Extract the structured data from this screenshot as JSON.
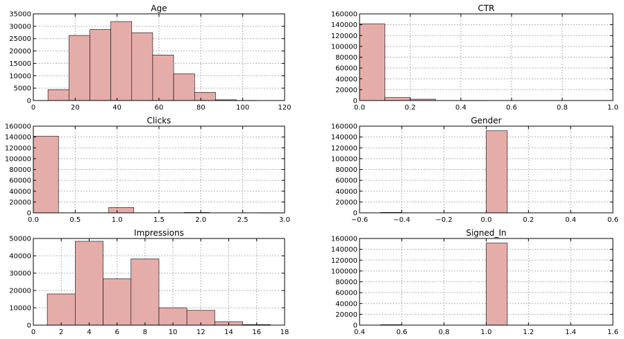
{
  "style": {
    "bar_color": "#e5adaa",
    "grid": true
  },
  "chart_data": [
    {
      "id": "age",
      "type": "bar",
      "title": "Age",
      "xlim": [
        0,
        120
      ],
      "ylim": [
        0,
        35000
      ],
      "x_ticks": [
        "0",
        "20",
        "40",
        "60",
        "80",
        "100",
        "120"
      ],
      "y_ticks": [
        "0",
        "5000",
        "10000",
        "15000",
        "20000",
        "25000",
        "30000",
        "35000"
      ],
      "bins": [
        {
          "x0": 7,
          "x1": 17,
          "value": 4400
        },
        {
          "x0": 17,
          "x1": 27,
          "value": 26300
        },
        {
          "x0": 27,
          "x1": 37,
          "value": 28700
        },
        {
          "x0": 37,
          "x1": 47,
          "value": 31900
        },
        {
          "x0": 47,
          "x1": 57,
          "value": 27400
        },
        {
          "x0": 57,
          "x1": 67,
          "value": 18400
        },
        {
          "x0": 67,
          "x1": 77,
          "value": 10800
        },
        {
          "x0": 77,
          "x1": 87,
          "value": 3300
        },
        {
          "x0": 87,
          "x1": 97,
          "value": 300
        },
        {
          "x0": 97,
          "x1": 107,
          "value": 10
        }
      ]
    },
    {
      "id": "ctr",
      "type": "bar",
      "title": "CTR",
      "xlim": [
        0,
        1.0
      ],
      "ylim": [
        0,
        160000
      ],
      "x_ticks": [
        "0.0",
        "0.2",
        "0.4",
        "0.6",
        "0.8",
        "1.0"
      ],
      "y_ticks": [
        "0",
        "20000",
        "40000",
        "60000",
        "80000",
        "100000",
        "120000",
        "140000",
        "160000"
      ],
      "bins": [
        {
          "x0": 0.0,
          "x1": 0.1,
          "value": 141500
        },
        {
          "x0": 0.1,
          "x1": 0.2,
          "value": 5500
        },
        {
          "x0": 0.2,
          "x1": 0.3,
          "value": 2500
        },
        {
          "x0": 0.3,
          "x1": 0.4,
          "value": 200
        },
        {
          "x0": 0.4,
          "x1": 0.5,
          "value": 50
        }
      ]
    },
    {
      "id": "clicks",
      "type": "bar",
      "title": "Clicks",
      "xlim": [
        0,
        3.0
      ],
      "ylim": [
        0,
        160000
      ],
      "x_ticks": [
        "0.0",
        "0.5",
        "1.0",
        "1.5",
        "2.0",
        "2.5",
        "3.0"
      ],
      "y_ticks": [
        "0",
        "20000",
        "40000",
        "60000",
        "80000",
        "100000",
        "120000",
        "140000",
        "160000"
      ],
      "bins": [
        {
          "x0": 0.0,
          "x1": 0.3,
          "value": 141500
        },
        {
          "x0": 0.9,
          "x1": 1.2,
          "value": 9800
        },
        {
          "x0": 1.8,
          "x1": 2.1,
          "value": 700
        },
        {
          "x0": 2.7,
          "x1": 3.0,
          "value": 50
        }
      ]
    },
    {
      "id": "gender",
      "type": "bar",
      "title": "Gender",
      "xlim": [
        -0.6,
        0.6
      ],
      "ylim": [
        0,
        160000
      ],
      "x_ticks": [
        "−0.6",
        "−0.4",
        "−0.2",
        "0.0",
        "0.2",
        "0.4",
        "0.6"
      ],
      "y_ticks": [
        "0",
        "20000",
        "40000",
        "60000",
        "80000",
        "100000",
        "120000",
        "140000",
        "160000"
      ],
      "bins": [
        {
          "x0": -0.5,
          "x1": -0.4,
          "value": 800
        },
        {
          "x0": 0.0,
          "x1": 0.1,
          "value": 151500
        }
      ]
    },
    {
      "id": "impressions",
      "type": "bar",
      "title": "Impressions",
      "xlim": [
        0,
        18
      ],
      "ylim": [
        0,
        50000
      ],
      "x_ticks": [
        "0",
        "2",
        "4",
        "6",
        "8",
        "10",
        "12",
        "14",
        "16",
        "18"
      ],
      "y_ticks": [
        "0",
        "10000",
        "20000",
        "30000",
        "40000",
        "50000"
      ],
      "bins": [
        {
          "x0": 1.0,
          "x1": 3.0,
          "value": 18000
        },
        {
          "x0": 3.0,
          "x1": 5.0,
          "value": 48400
        },
        {
          "x0": 5.0,
          "x1": 7.0,
          "value": 26800
        },
        {
          "x0": 7.0,
          "x1": 9.0,
          "value": 38200
        },
        {
          "x0": 9.0,
          "x1": 11.0,
          "value": 10000
        },
        {
          "x0": 11.0,
          "x1": 13.0,
          "value": 8500
        },
        {
          "x0": 13.0,
          "x1": 15.0,
          "value": 2000
        },
        {
          "x0": 15.0,
          "x1": 17.0,
          "value": 300
        }
      ]
    },
    {
      "id": "signed_in",
      "type": "bar",
      "title": "Signed_In",
      "xlim": [
        0.4,
        1.6
      ],
      "ylim": [
        0,
        160000
      ],
      "x_ticks": [
        "0.4",
        "0.6",
        "0.8",
        "1.0",
        "1.2",
        "1.4",
        "1.6"
      ],
      "y_ticks": [
        "0",
        "20000",
        "40000",
        "60000",
        "80000",
        "100000",
        "120000",
        "140000",
        "160000"
      ],
      "bins": [
        {
          "x0": 0.5,
          "x1": 0.6,
          "value": 800
        },
        {
          "x0": 1.0,
          "x1": 1.1,
          "value": 151500
        }
      ]
    }
  ]
}
